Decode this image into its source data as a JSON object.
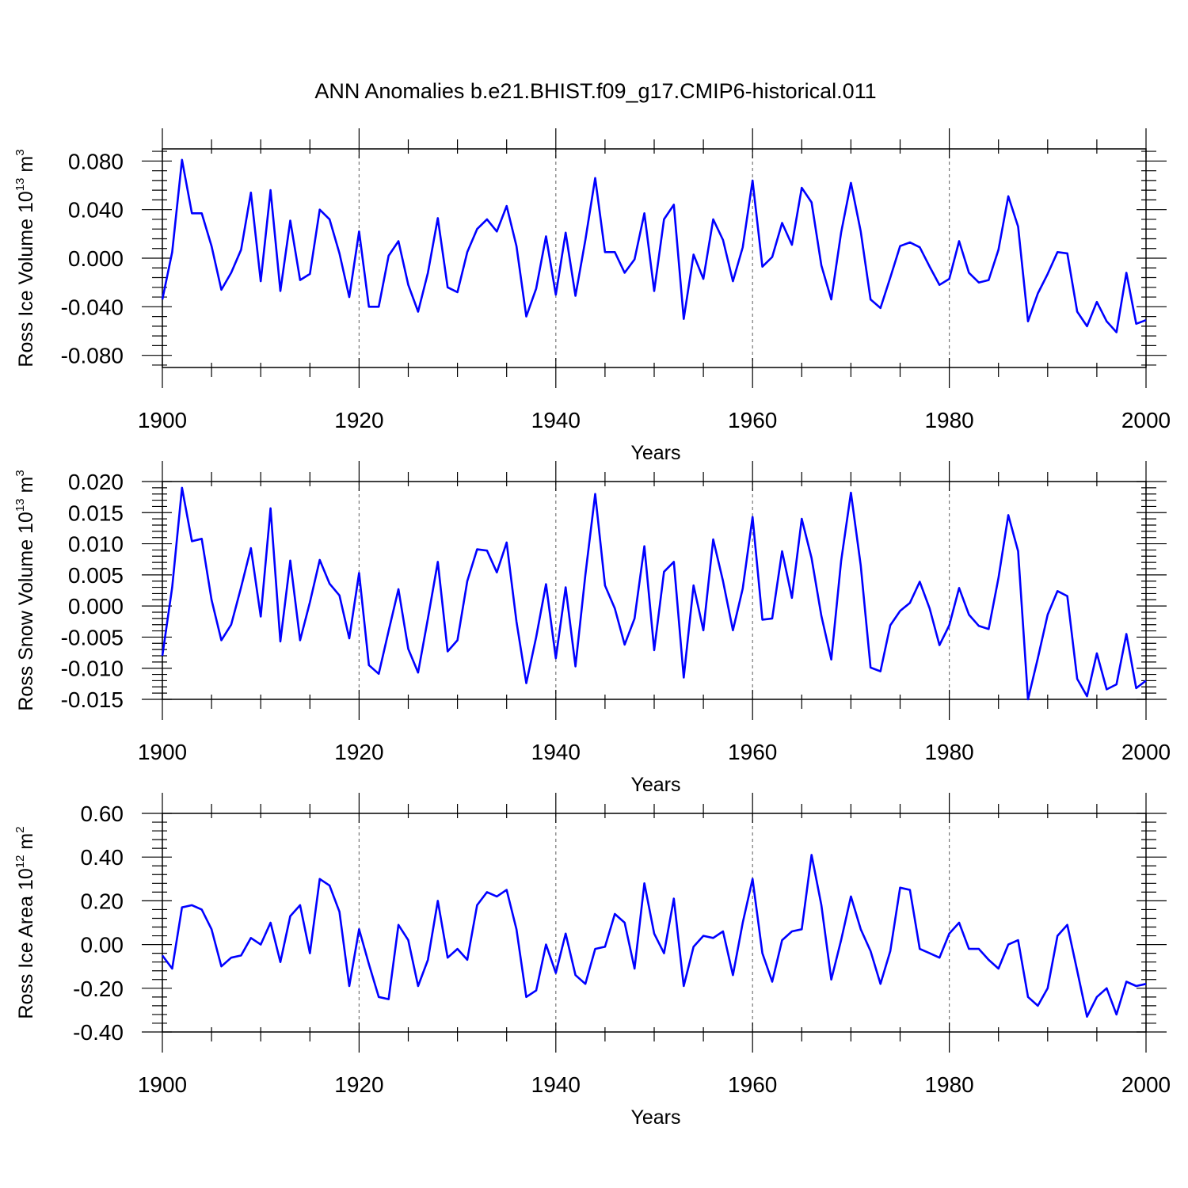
{
  "title": "ANN Anomalies b.e21.BHIST.f09_g17.CMIP6-historical.011",
  "colors": {
    "series": "#0000ff",
    "axis": "#000000",
    "grid": "#777777"
  },
  "chart_data": [
    {
      "type": "line",
      "ylabel": {
        "text": "Ross Ice Volume 10",
        "exp": "13",
        "unit": " m",
        "unit_exp": "3"
      },
      "xlabel": "Years",
      "xlim": [
        1900,
        2000
      ],
      "ylim": [
        -0.09,
        0.09
      ],
      "xticks": [
        1900,
        1920,
        1940,
        1960,
        1980,
        2000
      ],
      "yticks": [
        -0.08,
        -0.04,
        0.0,
        0.04,
        0.08
      ],
      "ytick_labels": [
        "-0.080",
        "-0.040",
        "0.000",
        "0.040",
        "0.080"
      ],
      "vgrid": [
        1920,
        1940,
        1960,
        1980
      ],
      "x_start": 1900,
      "values": [
        -0.034,
        0.005,
        0.081,
        0.037,
        0.037,
        0.01,
        -0.026,
        -0.012,
        0.007,
        0.054,
        -0.019,
        0.056,
        -0.027,
        0.031,
        -0.018,
        -0.013,
        0.04,
        0.032,
        0.004,
        -0.032,
        0.022,
        -0.04,
        -0.04,
        0.002,
        0.014,
        -0.022,
        -0.044,
        -0.012,
        0.033,
        -0.024,
        -0.028,
        0.005,
        0.024,
        0.032,
        0.022,
        0.043,
        0.01,
        -0.048,
        -0.025,
        0.018,
        -0.03,
        0.021,
        -0.031,
        0.015,
        0.066,
        0.005,
        0.005,
        -0.012,
        -0.001,
        0.037,
        -0.027,
        0.032,
        0.044,
        -0.05,
        0.003,
        -0.017,
        0.032,
        0.015,
        -0.019,
        0.009,
        0.064,
        -0.007,
        0.001,
        0.029,
        0.011,
        0.058,
        0.046,
        -0.006,
        -0.034,
        0.021,
        0.062,
        0.022,
        -0.034,
        -0.041,
        -0.016,
        0.01,
        0.013,
        0.009,
        -0.007,
        -0.022,
        -0.017,
        0.014,
        -0.012,
        -0.02,
        -0.018,
        0.007,
        0.051,
        0.026,
        -0.052,
        -0.029,
        -0.013,
        0.005,
        0.004,
        -0.044,
        -0.056,
        -0.036,
        -0.052,
        -0.061,
        -0.012,
        -0.054,
        -0.051
      ]
    },
    {
      "type": "line",
      "ylabel": {
        "text": "Ross Snow Volume 10",
        "exp": "13",
        "unit": " m",
        "unit_exp": "3"
      },
      "xlabel": "Years",
      "xlim": [
        1900,
        2000
      ],
      "ylim": [
        -0.015,
        0.02
      ],
      "xticks": [
        1900,
        1920,
        1940,
        1960,
        1980,
        2000
      ],
      "yticks": [
        -0.015,
        -0.01,
        -0.005,
        0.0,
        0.005,
        0.01,
        0.015,
        0.02
      ],
      "ytick_labels": [
        "-0.015",
        "-0.010",
        "-0.005",
        "0.000",
        "0.005",
        "0.010",
        "0.015",
        "0.020"
      ],
      "vgrid": [
        1920,
        1940,
        1960,
        1980
      ],
      "x_start": 1900,
      "values": [
        -0.008,
        0.003,
        0.019,
        0.0104,
        0.0108,
        0.001,
        -0.0055,
        -0.003,
        0.003,
        0.0093,
        -0.0017,
        0.0157,
        -0.0057,
        0.0073,
        -0.0055,
        0.0006,
        0.0074,
        0.0036,
        0.0017,
        -0.0052,
        0.0053,
        -0.0095,
        -0.0109,
        -0.004,
        0.0027,
        -0.0069,
        -0.0107,
        -0.002,
        0.0071,
        -0.0073,
        -0.0055,
        0.004,
        0.0091,
        0.0089,
        0.0054,
        0.0102,
        -0.0025,
        -0.0124,
        -0.005,
        0.0035,
        -0.0084,
        0.003,
        -0.0097,
        0.005,
        0.018,
        0.0033,
        -0.0004,
        -0.0062,
        -0.002,
        0.0096,
        -0.0071,
        0.0055,
        0.0071,
        -0.0115,
        0.0033,
        -0.0039,
        0.0107,
        0.004,
        -0.0039,
        0.0028,
        0.0143,
        -0.0022,
        -0.002,
        0.0088,
        0.0013,
        0.014,
        0.0077,
        -0.0016,
        -0.0086,
        0.0072,
        0.0182,
        0.0065,
        -0.0099,
        -0.0105,
        -0.0031,
        -0.0008,
        0.0005,
        0.0039,
        -0.0004,
        -0.0063,
        -0.0031,
        0.0029,
        -0.0014,
        -0.0032,
        -0.0037,
        0.0045,
        0.0146,
        0.0088,
        -0.015,
        -0.0084,
        -0.0014,
        0.0024,
        0.0016,
        -0.0117,
        -0.0145,
        -0.0076,
        -0.0134,
        -0.0126,
        -0.0045,
        -0.0132,
        -0.012
      ]
    },
    {
      "type": "line",
      "ylabel": {
        "text": "Ross Ice Area 10",
        "exp": "12",
        "unit": " m",
        "unit_exp": "2"
      },
      "xlabel": "Years",
      "xlim": [
        1900,
        2000
      ],
      "ylim": [
        -0.4,
        0.6
      ],
      "xticks": [
        1900,
        1920,
        1940,
        1960,
        1980,
        2000
      ],
      "yticks": [
        -0.4,
        -0.2,
        0.0,
        0.2,
        0.4,
        0.6
      ],
      "ytick_labels": [
        "-0.40",
        "-0.20",
        "0.00",
        "0.20",
        "0.40",
        "0.60"
      ],
      "vgrid": [
        1920,
        1940,
        1960,
        1980
      ],
      "x_start": 1900,
      "values": [
        -0.05,
        -0.11,
        0.17,
        0.18,
        0.16,
        0.07,
        -0.1,
        -0.06,
        -0.05,
        0.03,
        0.0,
        0.1,
        -0.08,
        0.13,
        0.18,
        -0.04,
        0.3,
        0.27,
        0.15,
        -0.19,
        0.07,
        -0.09,
        -0.24,
        -0.25,
        0.09,
        0.02,
        -0.19,
        -0.07,
        0.2,
        -0.06,
        -0.02,
        -0.07,
        0.18,
        0.24,
        0.22,
        0.25,
        0.07,
        -0.24,
        -0.21,
        0.0,
        -0.13,
        0.05,
        -0.14,
        -0.18,
        -0.02,
        -0.01,
        0.14,
        0.1,
        -0.11,
        0.28,
        0.05,
        -0.04,
        0.21,
        -0.19,
        -0.01,
        0.04,
        0.03,
        0.06,
        -0.14,
        0.1,
        0.3,
        -0.04,
        -0.17,
        0.02,
        0.06,
        0.07,
        0.41,
        0.18,
        -0.16,
        0.02,
        0.22,
        0.07,
        -0.03,
        -0.18,
        -0.03,
        0.26,
        0.25,
        -0.02,
        -0.04,
        -0.06,
        0.05,
        0.1,
        -0.02,
        -0.02,
        -0.07,
        -0.11,
        0.0,
        0.02,
        -0.24,
        -0.28,
        -0.2,
        0.04,
        0.09,
        -0.12,
        -0.33,
        -0.24,
        -0.2,
        -0.32,
        -0.17,
        -0.19,
        -0.18
      ]
    }
  ]
}
